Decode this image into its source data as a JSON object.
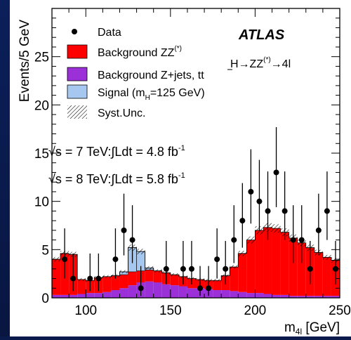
{
  "chart_data": {
    "type": "bar",
    "experiment": "ATLAS",
    "process": "H→ZZ(*)→4l",
    "xlabel": "m4l [GeV]",
    "ylabel": "Events/5 GeV",
    "xlim": [
      80,
      250
    ],
    "ylim": [
      0,
      30
    ],
    "grid": false,
    "legend_position": "top-left",
    "x_ticks": [
      100,
      150,
      200,
      250
    ],
    "y_ticks": [
      0,
      5,
      10,
      15,
      20,
      25
    ],
    "energy_labels": [
      {
        "sqrt_s": "√s = 7 TeV:",
        "lumi": "∫Ldt = 4.8 fb",
        "exp": "-1"
      },
      {
        "sqrt_s": "√s = 8 TeV:",
        "lumi": "∫Ldt = 5.8 fb",
        "exp": "-1"
      }
    ],
    "legend": [
      {
        "key": "data",
        "text": "Data"
      },
      {
        "key": "zz",
        "text": "Background ZZ",
        "sup": "(*)"
      },
      {
        "key": "zjets",
        "text": "Background Z+jets, t",
        "sup": ""
      },
      {
        "key": "signal",
        "text": "Signal (m",
        "sub": "H",
        "tail": "=125 GeV)"
      },
      {
        "key": "syst",
        "text": "Syst.Unc."
      }
    ],
    "colors": {
      "zz": "#ff0000",
      "zjets": "#9b30d9",
      "signal": "#a6c8f0",
      "data": "#000000",
      "frame_bg": "#0b1f5a"
    },
    "bin_width": 5,
    "bin_edges_start": 80,
    "series": [
      {
        "name": "Background Z+jets, tt̅",
        "values": [
          0.3,
          0.3,
          0.3,
          0.4,
          0.5,
          0.5,
          0.6,
          0.8,
          1.0,
          1.3,
          1.6,
          1.7,
          1.6,
          1.4,
          1.3,
          1.2,
          1.0,
          1.0,
          0.9,
          0.8,
          0.8,
          0.7,
          0.6,
          0.5,
          0.5,
          0.4,
          0.3,
          0.3,
          0.2,
          0.2,
          0.2,
          0.2,
          0.2,
          0.2
        ]
      },
      {
        "name": "Background ZZ(*)",
        "values": [
          3.7,
          4.3,
          4.2,
          1.5,
          1.3,
          1.6,
          1.6,
          1.5,
          1.4,
          1.4,
          1.2,
          1.2,
          1.2,
          1.2,
          1.1,
          1.0,
          1.0,
          0.9,
          0.9,
          1.0,
          1.5,
          2.5,
          4.0,
          5.5,
          6.5,
          6.9,
          6.9,
          6.5,
          6.0,
          5.5,
          5.0,
          4.5,
          4.0,
          3.7
        ]
      },
      {
        "name": "Signal (mH=125 GeV)",
        "values": [
          0,
          0,
          0,
          0,
          0,
          0,
          0,
          0,
          0.3,
          2.5,
          2.0,
          0.2,
          0,
          0,
          0,
          0,
          0,
          0,
          0,
          0,
          0,
          0,
          0,
          0,
          0,
          0,
          0,
          0,
          0,
          0,
          0,
          0,
          0,
          0
        ]
      }
    ],
    "data_points": [
      {
        "x": 87.5,
        "y": 4,
        "err": [
          2.0,
          3.2
        ]
      },
      {
        "x": 92.5,
        "y": 2,
        "err": [
          1.3,
          2.6
        ]
      },
      {
        "x": 102.5,
        "y": 2,
        "err": [
          1.3,
          2.6
        ]
      },
      {
        "x": 107.5,
        "y": 2,
        "err": [
          1.3,
          2.6
        ]
      },
      {
        "x": 117.5,
        "y": 4,
        "err": [
          2.0,
          3.2
        ]
      },
      {
        "x": 122.5,
        "y": 7,
        "err": [
          2.6,
          3.8
        ]
      },
      {
        "x": 127.5,
        "y": 6,
        "err": [
          2.4,
          3.6
        ]
      },
      {
        "x": 132.5,
        "y": 1,
        "err": [
          0.8,
          2.3
        ]
      },
      {
        "x": 147.5,
        "y": 3,
        "err": [
          1.6,
          2.9
        ]
      },
      {
        "x": 157.5,
        "y": 3,
        "err": [
          1.6,
          2.9
        ]
      },
      {
        "x": 162.5,
        "y": 3,
        "err": [
          1.6,
          2.9
        ]
      },
      {
        "x": 167.5,
        "y": 1,
        "err": [
          0.8,
          2.3
        ]
      },
      {
        "x": 172.5,
        "y": 1,
        "err": [
          0.8,
          2.3
        ]
      },
      {
        "x": 177.5,
        "y": 4,
        "err": [
          2.0,
          3.2
        ]
      },
      {
        "x": 182.5,
        "y": 3,
        "err": [
          1.6,
          2.9
        ]
      },
      {
        "x": 187.5,
        "y": 6,
        "err": [
          2.4,
          3.6
        ]
      },
      {
        "x": 192.5,
        "y": 8,
        "err": [
          2.8,
          3.9
        ]
      },
      {
        "x": 197.5,
        "y": 11,
        "err": [
          3.3,
          4.4
        ]
      },
      {
        "x": 202.5,
        "y": 10,
        "err": [
          3.1,
          4.3
        ]
      },
      {
        "x": 207.5,
        "y": 9,
        "err": [
          3.0,
          4.1
        ]
      },
      {
        "x": 212.5,
        "y": 13,
        "err": [
          3.6,
          4.7
        ]
      },
      {
        "x": 217.5,
        "y": 9,
        "err": [
          3.0,
          4.1
        ]
      },
      {
        "x": 222.5,
        "y": 6,
        "err": [
          2.4,
          3.6
        ]
      },
      {
        "x": 227.5,
        "y": 6,
        "err": [
          2.4,
          3.6
        ]
      },
      {
        "x": 232.5,
        "y": 3,
        "err": [
          1.6,
          2.9
        ]
      },
      {
        "x": 237.5,
        "y": 7,
        "err": [
          2.6,
          3.8
        ]
      },
      {
        "x": 242.5,
        "y": 9,
        "err": [
          3.0,
          4.1
        ]
      },
      {
        "x": 247.5,
        "y": 3,
        "err": [
          1.6,
          2.9
        ]
      }
    ]
  }
}
